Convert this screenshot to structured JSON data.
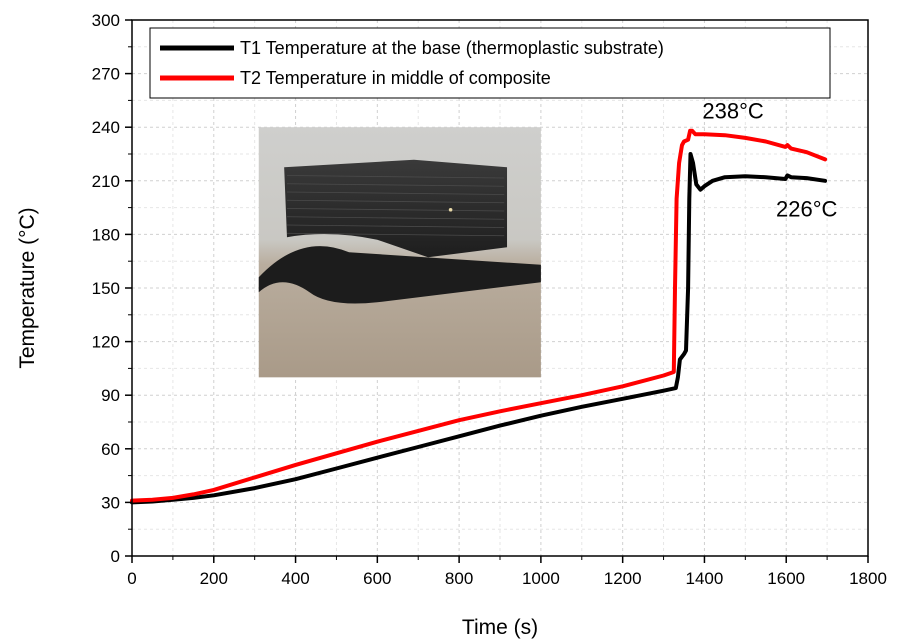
{
  "chart_data": {
    "type": "line",
    "xlabel": "Time (s)",
    "ylabel": "Temperature (°C)",
    "xlim": [
      0,
      1800
    ],
    "ylim": [
      0,
      300
    ],
    "xticks": [
      0,
      200,
      400,
      600,
      800,
      1000,
      1200,
      1400,
      1600,
      1800
    ],
    "yticks": [
      0,
      30,
      60,
      90,
      120,
      150,
      180,
      210,
      240,
      270,
      300
    ],
    "grid": true,
    "legend_position": "top",
    "series": [
      {
        "name": "T1 Temperature at the base (thermoplastic substrate)",
        "color": "#000000",
        "points": [
          [
            0,
            30
          ],
          [
            50,
            30.5
          ],
          [
            100,
            31.5
          ],
          [
            150,
            32.5
          ],
          [
            200,
            34
          ],
          [
            300,
            38
          ],
          [
            400,
            43
          ],
          [
            500,
            49
          ],
          [
            600,
            55
          ],
          [
            700,
            61
          ],
          [
            800,
            67
          ],
          [
            900,
            73
          ],
          [
            1000,
            78.5
          ],
          [
            1100,
            83.5
          ],
          [
            1200,
            88
          ],
          [
            1300,
            92.5
          ],
          [
            1330,
            94
          ],
          [
            1335,
            100
          ],
          [
            1340,
            110
          ],
          [
            1350,
            113
          ],
          [
            1355,
            115
          ],
          [
            1360,
            150
          ],
          [
            1363,
            200
          ],
          [
            1366,
            225
          ],
          [
            1372,
            220
          ],
          [
            1380,
            208
          ],
          [
            1390,
            205
          ],
          [
            1400,
            207
          ],
          [
            1420,
            210
          ],
          [
            1450,
            212
          ],
          [
            1500,
            212.5
          ],
          [
            1550,
            212
          ],
          [
            1598,
            211
          ],
          [
            1603,
            213
          ],
          [
            1612,
            212
          ],
          [
            1650,
            211.5
          ],
          [
            1695,
            210
          ]
        ]
      },
      {
        "name": "T2 Temperature in middle of composite",
        "color": "#ff0000",
        "points": [
          [
            0,
            31
          ],
          [
            50,
            31.5
          ],
          [
            100,
            32.5
          ],
          [
            150,
            34.5
          ],
          [
            200,
            37
          ],
          [
            300,
            44
          ],
          [
            400,
            51
          ],
          [
            500,
            57.5
          ],
          [
            600,
            64
          ],
          [
            700,
            70
          ],
          [
            800,
            76
          ],
          [
            900,
            81
          ],
          [
            1000,
            85.5
          ],
          [
            1100,
            90
          ],
          [
            1200,
            95
          ],
          [
            1300,
            101
          ],
          [
            1325,
            103
          ],
          [
            1328,
            150
          ],
          [
            1332,
            200
          ],
          [
            1338,
            220
          ],
          [
            1345,
            230
          ],
          [
            1350,
            232
          ],
          [
            1360,
            233
          ],
          [
            1365,
            238
          ],
          [
            1370,
            238
          ],
          [
            1378,
            236
          ],
          [
            1400,
            236
          ],
          [
            1450,
            235.5
          ],
          [
            1500,
            234
          ],
          [
            1550,
            232
          ],
          [
            1598,
            229
          ],
          [
            1603,
            230
          ],
          [
            1612,
            228
          ],
          [
            1650,
            226
          ],
          [
            1695,
            222
          ]
        ]
      }
    ],
    "annotations": [
      {
        "text": "238°C",
        "x": 1395,
        "y": 245
      },
      {
        "text": "226°C",
        "x": 1575,
        "y": 190
      }
    ],
    "inset_image": {
      "description": "photo",
      "x_range": [
        310,
        1000
      ],
      "y_range": [
        100,
        240
      ]
    }
  }
}
